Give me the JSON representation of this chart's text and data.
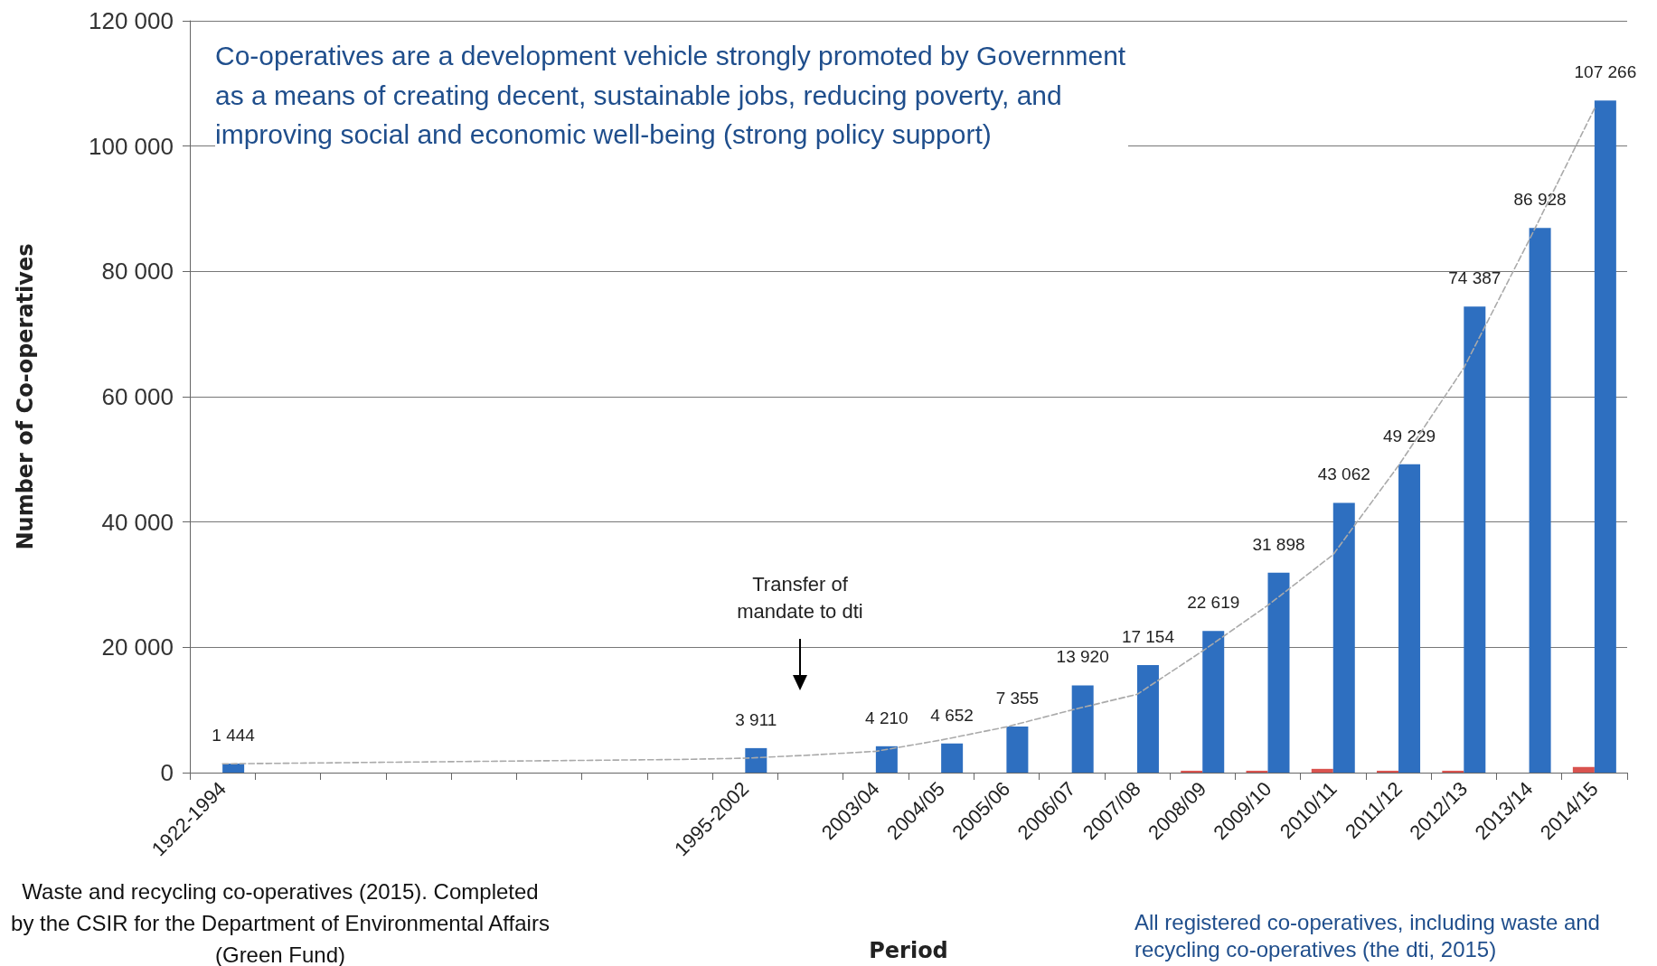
{
  "chart_data": {
    "type": "bar",
    "xlabel": "Period",
    "ylabel": "Number of Co-operatives",
    "categories": [
      "1922-1994",
      null,
      null,
      null,
      null,
      null,
      null,
      null,
      "1995-2002",
      null,
      "2003/04",
      "2004/05",
      "2005/06",
      "2006/07",
      "2007/08",
      "2008/09",
      "2009/10",
      "2010/11",
      "2011/12",
      "2012/13",
      "2013/14",
      "2014/15"
    ],
    "series": [
      {
        "color": "#d9534f",
        "values": [
          null,
          null,
          null,
          null,
          null,
          null,
          null,
          null,
          null,
          null,
          null,
          null,
          null,
          null,
          null,
          300,
          300,
          600,
          300,
          300,
          null,
          900
        ]
      },
      {
        "color": "#2e6fc0",
        "values": [
          1444,
          null,
          null,
          null,
          null,
          null,
          null,
          null,
          3911,
          null,
          4210,
          4652,
          7355,
          13920,
          17154,
          22619,
          31898,
          43062,
          49229,
          74387,
          86928,
          107266
        ],
        "value_labels": [
          "1 444",
          null,
          null,
          null,
          null,
          null,
          null,
          null,
          "3 911",
          null,
          "4 210",
          "4 652",
          "7 355",
          "13 920",
          "17 154",
          "22 619",
          "31 898",
          "43 062",
          "49 229",
          "74 387",
          "86 928",
          "107 266"
        ]
      },
      {
        "type": "line",
        "color": "#aaaaaa",
        "line_style": "dashed",
        "marker": "none",
        "values": [
          1400,
          1500,
          1600,
          1700,
          1800,
          1900,
          2000,
          2100,
          2300,
          2800,
          3400,
          5200,
          7300,
          10000,
          12500,
          19400,
          26700,
          34800,
          49000,
          64600,
          85000,
          106000
        ]
      }
    ],
    "ylim": [
      0,
      120000
    ],
    "yticks": [
      {
        "value": 0,
        "label": "0"
      },
      {
        "value": 20000,
        "label": "20 000"
      },
      {
        "value": 40000,
        "label": "40 000"
      },
      {
        "value": 60000,
        "label": "60 000"
      },
      {
        "value": 80000,
        "label": "80 000"
      },
      {
        "value": 100000,
        "label": "100 000"
      },
      {
        "value": 120000,
        "label": "120 000"
      }
    ],
    "grid": "y",
    "annotations": [
      "Co-operatives are a development vehicle strongly promoted by Government as a means of creating decent, sustainable jobs, reducing poverty, and improving social and economic well-being (strong policy support)",
      "Transfer of mandate to dti",
      "Waste and recycling co-operatives (2015). Completed by the CSIR for the Department of Environmental Affairs (Green Fund)",
      "All registered co-operatives, including waste and recycling co-operatives (the dti, 2015)"
    ]
  }
}
